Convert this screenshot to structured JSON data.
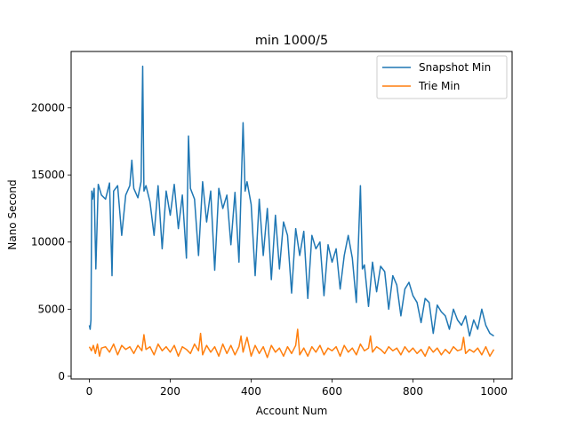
{
  "chart_data": {
    "type": "line",
    "title": "min 1000/5",
    "xlabel": "Account Num",
    "ylabel": "Nano Second",
    "xlim": [
      -45,
      1045
    ],
    "ylim": [
      -200,
      24200
    ],
    "xticks": [
      0,
      200,
      400,
      600,
      800,
      1000
    ],
    "yticks": [
      0,
      5000,
      10000,
      15000,
      20000
    ],
    "grid": false,
    "legend": "top-right",
    "series": [
      {
        "name": "Snapshot Min",
        "color": "#1f77b4",
        "x": [
          0,
          2,
          4,
          6,
          8,
          12,
          16,
          22,
          30,
          40,
          50,
          56,
          60,
          70,
          80,
          90,
          100,
          105,
          110,
          120,
          128,
          132,
          135,
          140,
          150,
          160,
          170,
          180,
          190,
          200,
          210,
          220,
          230,
          240,
          245,
          250,
          260,
          270,
          280,
          290,
          300,
          310,
          320,
          330,
          340,
          350,
          360,
          370,
          380,
          385,
          390,
          400,
          410,
          420,
          430,
          440,
          450,
          460,
          470,
          480,
          490,
          500,
          510,
          520,
          530,
          540,
          550,
          560,
          570,
          580,
          590,
          600,
          610,
          620,
          630,
          640,
          650,
          660,
          670,
          675,
          680,
          690,
          700,
          710,
          720,
          730,
          740,
          750,
          760,
          770,
          780,
          790,
          800,
          810,
          820,
          830,
          840,
          850,
          860,
          870,
          880,
          890,
          900,
          910,
          920,
          930,
          940,
          950,
          960,
          970,
          980,
          990,
          1000
        ],
        "y": [
          3800,
          3500,
          4200,
          13800,
          13200,
          14000,
          8000,
          14300,
          13500,
          13200,
          14400,
          7500,
          13800,
          14200,
          10500,
          13500,
          14200,
          16100,
          14000,
          13300,
          14500,
          23100,
          13800,
          14200,
          13000,
          10500,
          14200,
          9500,
          13800,
          12000,
          14300,
          11000,
          13500,
          8800,
          17900,
          14000,
          13200,
          9000,
          14500,
          11500,
          13800,
          7900,
          14000,
          12500,
          13500,
          9800,
          13700,
          8500,
          18900,
          13800,
          14500,
          12800,
          7500,
          13200,
          9000,
          12500,
          7200,
          12000,
          8000,
          11500,
          10500,
          6200,
          11000,
          9000,
          10800,
          5800,
          10500,
          9500,
          10000,
          6000,
          9800,
          8500,
          9500,
          6500,
          9000,
          10500,
          8800,
          5500,
          14200,
          8000,
          8300,
          5200,
          8500,
          6300,
          8200,
          7800,
          5000,
          7500,
          6800,
          4500,
          6500,
          7000,
          6000,
          5500,
          4000,
          5800,
          5500,
          3200,
          5300,
          4800,
          4500,
          3500,
          5000,
          4200,
          3800,
          4500,
          3000,
          4200,
          3500,
          5000,
          3800,
          3200,
          3000
        ]
      },
      {
        "name": "Trie Min",
        "color": "#ff7f0e",
        "x": [
          0,
          5,
          10,
          15,
          20,
          25,
          30,
          40,
          50,
          60,
          70,
          80,
          90,
          100,
          110,
          120,
          130,
          135,
          140,
          150,
          160,
          170,
          180,
          190,
          200,
          210,
          220,
          230,
          240,
          250,
          260,
          270,
          275,
          280,
          290,
          300,
          310,
          320,
          330,
          340,
          350,
          360,
          370,
          375,
          380,
          390,
          400,
          410,
          420,
          430,
          440,
          450,
          460,
          470,
          480,
          490,
          500,
          510,
          515,
          520,
          530,
          540,
          550,
          560,
          570,
          580,
          590,
          600,
          610,
          620,
          630,
          640,
          650,
          660,
          670,
          680,
          690,
          695,
          700,
          710,
          720,
          730,
          740,
          750,
          760,
          770,
          780,
          790,
          800,
          810,
          820,
          830,
          840,
          850,
          860,
          870,
          880,
          890,
          900,
          910,
          920,
          925,
          930,
          940,
          950,
          960,
          970,
          980,
          990,
          1000
        ],
        "y": [
          2200,
          1900,
          2300,
          1700,
          2400,
          1500,
          2100,
          2200,
          1800,
          2400,
          1600,
          2300,
          2000,
          2200,
          1700,
          2300,
          1900,
          3100,
          2000,
          2200,
          1600,
          2400,
          1900,
          2200,
          1800,
          2300,
          1500,
          2200,
          2000,
          1700,
          2400,
          1900,
          3200,
          1600,
          2300,
          1800,
          2200,
          1500,
          2400,
          1700,
          2300,
          1600,
          2200,
          3000,
          1800,
          2900,
          1500,
          2300,
          1700,
          2200,
          1400,
          2300,
          1800,
          2100,
          1500,
          2200,
          1700,
          2300,
          3500,
          1600,
          2100,
          1500,
          2200,
          1800,
          2300,
          1600,
          2100,
          1900,
          2200,
          1500,
          2300,
          1800,
          2100,
          1600,
          2400,
          1900,
          2100,
          3000,
          1800,
          2200,
          2000,
          1700,
          2200,
          1900,
          2100,
          1600,
          2200,
          1800,
          2100,
          1700,
          2000,
          1500,
          2200,
          1800,
          2100,
          1600,
          2000,
          1700,
          2200,
          1900,
          2000,
          2900,
          1700,
          2000,
          1800,
          2100,
          1600,
          2200,
          1500,
          2000
        ]
      }
    ]
  }
}
